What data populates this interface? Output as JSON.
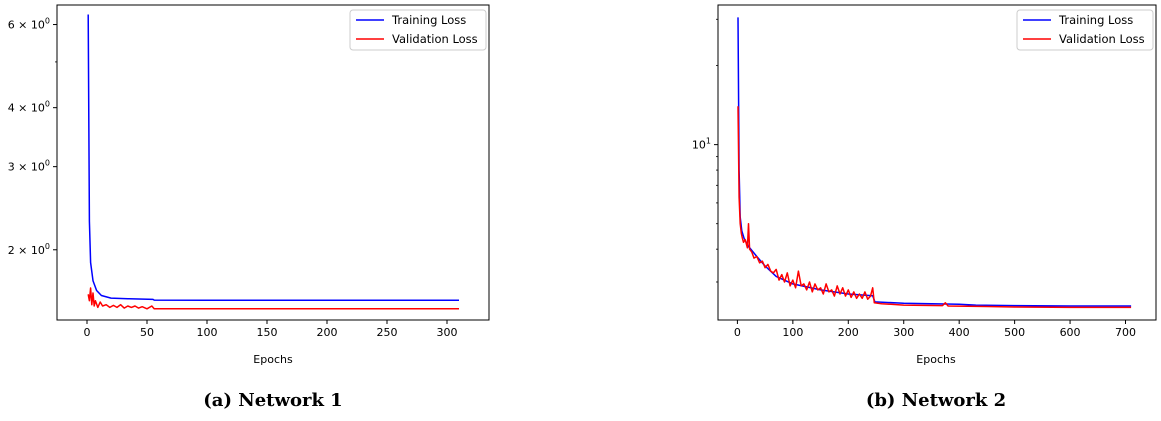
{
  "chart_data": [
    {
      "type": "line",
      "caption": "(a) Network 1",
      "xlabel": "Epochs",
      "ylabel": "",
      "xlim": [
        -25,
        335
      ],
      "ylim": [
        1.42,
        6.6
      ],
      "yscale": "log",
      "xticks": [
        0,
        50,
        100,
        150,
        200,
        250,
        300
      ],
      "yticks": [
        {
          "value": 2,
          "base": "2",
          "label": "× 10⁰"
        },
        {
          "value": 3,
          "base": "3",
          "label": "× 10⁰"
        },
        {
          "value": 4,
          "base": "4",
          "label": "× 10⁰"
        },
        {
          "value": 6,
          "base": "6",
          "label": "× 10⁰"
        }
      ],
      "legend_position": "top-right",
      "grid": false,
      "series": [
        {
          "name": "Training Loss",
          "color": "#0000ff",
          "points": [
            [
              1,
              6.3
            ],
            [
              2,
              2.3
            ],
            [
              3,
              1.88
            ],
            [
              5,
              1.72
            ],
            [
              8,
              1.64
            ],
            [
              12,
              1.6
            ],
            [
              20,
              1.58
            ],
            [
              35,
              1.575
            ],
            [
              55,
              1.57
            ],
            [
              56,
              1.565
            ],
            [
              100,
              1.563
            ],
            [
              200,
              1.563
            ],
            [
              310,
              1.563
            ]
          ]
        },
        {
          "name": "Validation Loss",
          "color": "#ff0000",
          "points": [
            [
              1,
              1.61
            ],
            [
              2,
              1.56
            ],
            [
              3,
              1.66
            ],
            [
              4,
              1.53
            ],
            [
              5,
              1.62
            ],
            [
              6,
              1.52
            ],
            [
              7,
              1.56
            ],
            [
              9,
              1.51
            ],
            [
              11,
              1.55
            ],
            [
              13,
              1.52
            ],
            [
              16,
              1.53
            ],
            [
              19,
              1.51
            ],
            [
              22,
              1.525
            ],
            [
              25,
              1.51
            ],
            [
              28,
              1.53
            ],
            [
              31,
              1.505
            ],
            [
              34,
              1.52
            ],
            [
              37,
              1.51
            ],
            [
              40,
              1.52
            ],
            [
              43,
              1.505
            ],
            [
              46,
              1.515
            ],
            [
              50,
              1.5
            ],
            [
              54,
              1.52
            ],
            [
              56,
              1.5
            ],
            [
              60,
              1.5
            ],
            [
              100,
              1.5
            ],
            [
              200,
              1.5
            ],
            [
              310,
              1.5
            ]
          ]
        }
      ]
    },
    {
      "type": "line",
      "caption": "(b) Network 2",
      "xlabel": "Epochs",
      "ylabel": "",
      "xlim": [
        -35,
        755
      ],
      "ylim": [
        2.15,
        34.0
      ],
      "yscale": "log",
      "xticks": [
        0,
        100,
        200,
        300,
        400,
        500,
        600,
        700
      ],
      "yticks": [
        {
          "value": 10,
          "base": "10",
          "label": "1"
        }
      ],
      "legend_position": "top-right",
      "grid": false,
      "series": [
        {
          "name": "Training Loss",
          "color": "#0000ff",
          "points": [
            [
              1,
              30.5
            ],
            [
              3,
              8.0
            ],
            [
              5,
              5.3
            ],
            [
              8,
              4.7
            ],
            [
              12,
              4.4
            ],
            [
              20,
              4.1
            ],
            [
              35,
              3.75
            ],
            [
              50,
              3.45
            ],
            [
              70,
              3.15
            ],
            [
              100,
              2.95
            ],
            [
              150,
              2.8
            ],
            [
              200,
              2.7
            ],
            [
              244,
              2.66
            ],
            [
              248,
              2.52
            ],
            [
              300,
              2.49
            ],
            [
              400,
              2.47
            ],
            [
              430,
              2.45
            ],
            [
              500,
              2.44
            ],
            [
              600,
              2.43
            ],
            [
              710,
              2.43
            ]
          ]
        },
        {
          "name": "Validation Loss",
          "color": "#ff0000",
          "points": [
            [
              1,
              14.0
            ],
            [
              3,
              6.3
            ],
            [
              5,
              5.0
            ],
            [
              7,
              4.6
            ],
            [
              9,
              4.4
            ],
            [
              11,
              4.25
            ],
            [
              14,
              4.35
            ],
            [
              18,
              4.05
            ],
            [
              20,
              5.0
            ],
            [
              22,
              4.0
            ],
            [
              26,
              3.9
            ],
            [
              30,
              3.7
            ],
            [
              35,
              3.75
            ],
            [
              40,
              3.55
            ],
            [
              45,
              3.6
            ],
            [
              50,
              3.4
            ],
            [
              55,
              3.5
            ],
            [
              60,
              3.3
            ],
            [
              65,
              3.25
            ],
            [
              70,
              3.35
            ],
            [
              75,
              3.05
            ],
            [
              80,
              3.2
            ],
            [
              85,
              3.0
            ],
            [
              90,
              3.25
            ],
            [
              95,
              2.9
            ],
            [
              100,
              3.05
            ],
            [
              105,
              2.85
            ],
            [
              110,
              3.3
            ],
            [
              115,
              2.9
            ],
            [
              120,
              2.95
            ],
            [
              125,
              2.8
            ],
            [
              130,
              3.0
            ],
            [
              135,
              2.75
            ],
            [
              140,
              2.95
            ],
            [
              145,
              2.8
            ],
            [
              150,
              2.85
            ],
            [
              155,
              2.7
            ],
            [
              160,
              2.95
            ],
            [
              165,
              2.75
            ],
            [
              170,
              2.8
            ],
            [
              175,
              2.65
            ],
            [
              180,
              2.9
            ],
            [
              185,
              2.7
            ],
            [
              190,
              2.85
            ],
            [
              195,
              2.65
            ],
            [
              200,
              2.8
            ],
            [
              205,
              2.62
            ],
            [
              210,
              2.75
            ],
            [
              215,
              2.6
            ],
            [
              220,
              2.7
            ],
            [
              225,
              2.6
            ],
            [
              230,
              2.75
            ],
            [
              235,
              2.58
            ],
            [
              240,
              2.65
            ],
            [
              244,
              2.85
            ],
            [
              247,
              2.5
            ],
            [
              260,
              2.48
            ],
            [
              300,
              2.45
            ],
            [
              370,
              2.44
            ],
            [
              375,
              2.5
            ],
            [
              380,
              2.43
            ],
            [
              450,
              2.42
            ],
            [
              500,
              2.41
            ],
            [
              600,
              2.4
            ],
            [
              710,
              2.4
            ]
          ]
        }
      ]
    }
  ],
  "panels": [
    {
      "legend": [
        {
          "label": "Training Loss"
        },
        {
          "label": "Validation Loss"
        }
      ]
    },
    {
      "legend": [
        {
          "label": "Training Loss"
        },
        {
          "label": "Validation Loss"
        }
      ]
    }
  ]
}
